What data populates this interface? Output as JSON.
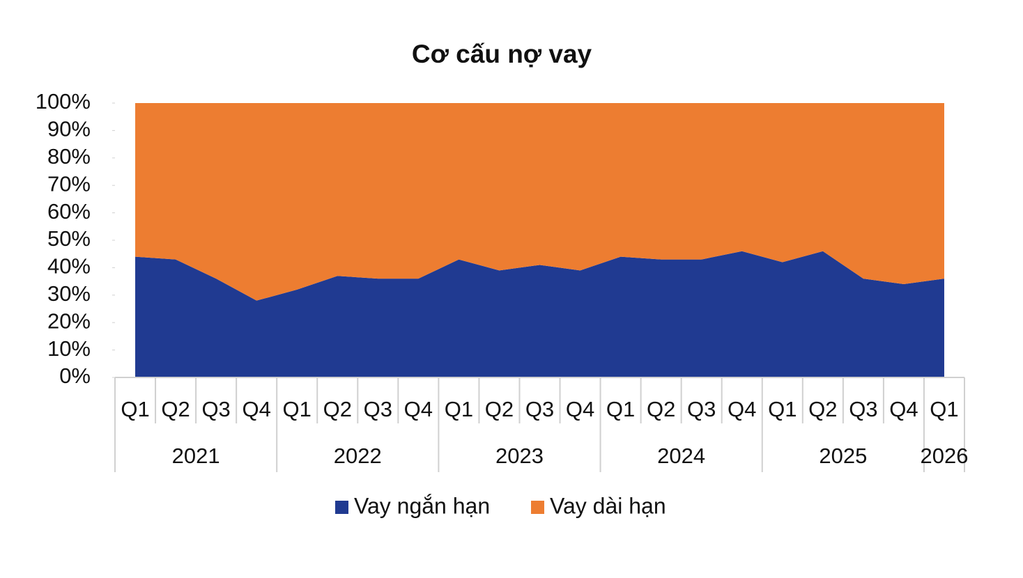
{
  "chart_data": {
    "type": "stacked-area",
    "title": "Cơ cấu nợ vay",
    "categories": [
      "Q1",
      "Q2",
      "Q3",
      "Q4",
      "Q1",
      "Q2",
      "Q3",
      "Q4",
      "Q1",
      "Q2",
      "Q3",
      "Q4",
      "Q1",
      "Q2",
      "Q3",
      "Q4",
      "Q1",
      "Q2",
      "Q3",
      "Q4",
      "Q1"
    ],
    "year_labels": [
      "2021",
      null,
      null,
      null,
      "2022",
      null,
      null,
      null,
      "2023",
      null,
      null,
      null,
      "2024",
      null,
      null,
      null,
      "2025",
      null,
      null,
      null,
      "2026"
    ],
    "series": [
      {
        "name": "Vay ngắn hạn",
        "color": "#203a91",
        "values": [
          44,
          43,
          36,
          28,
          32,
          37,
          36,
          36,
          43,
          39,
          41,
          39,
          44,
          43,
          43,
          46,
          42,
          46,
          36,
          34,
          36
        ]
      },
      {
        "name": "Vay dài hạn",
        "color": "#ed7d31",
        "values": [
          56,
          57,
          64,
          72,
          68,
          63,
          64,
          64,
          57,
          61,
          59,
          61,
          56,
          57,
          57,
          54,
          58,
          54,
          64,
          66,
          64
        ]
      }
    ],
    "ylim": [
      0,
      100
    ],
    "yticks": [
      {
        "value": 0,
        "label": "0%"
      },
      {
        "value": 10,
        "label": "10%"
      },
      {
        "value": 20,
        "label": "20%"
      },
      {
        "value": 30,
        "label": "30%"
      },
      {
        "value": 40,
        "label": "40%"
      },
      {
        "value": 50,
        "label": "50%"
      },
      {
        "value": 60,
        "label": "60%"
      },
      {
        "value": 70,
        "label": "70%"
      },
      {
        "value": 80,
        "label": "80%"
      },
      {
        "value": 90,
        "label": "90%"
      },
      {
        "value": 100,
        "label": "100%"
      }
    ],
    "legend": "bottom"
  }
}
